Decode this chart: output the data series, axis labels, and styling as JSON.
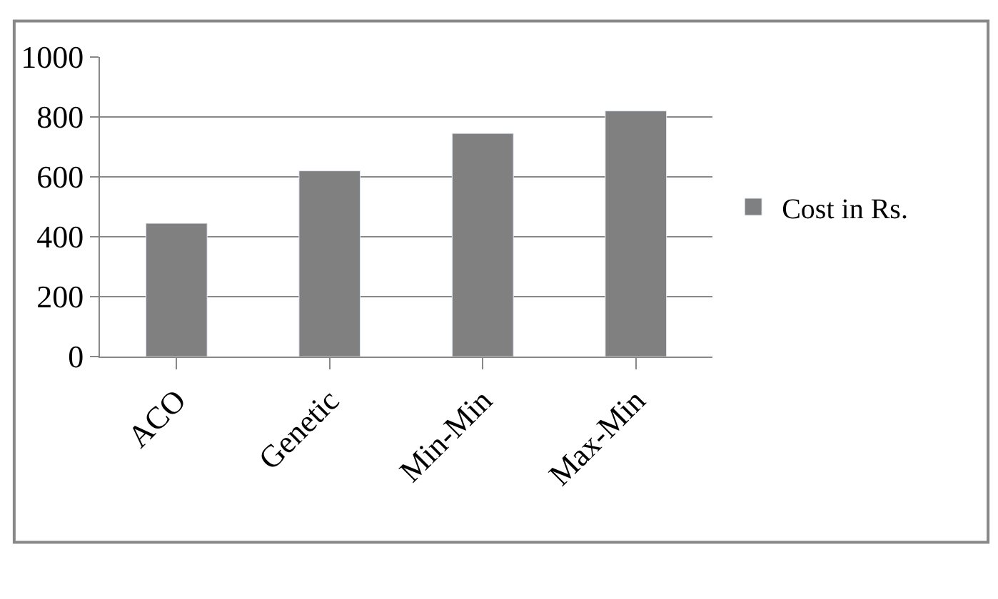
{
  "chart_data": {
    "type": "bar",
    "categories": [
      "ACO",
      "Genetic",
      "Min-Min",
      "Max-Min"
    ],
    "series": [
      {
        "name": "Cost in Rs.",
        "color": "#808080",
        "values": [
          445,
          620,
          745,
          820
        ]
      }
    ],
    "ylim": [
      0,
      1000
    ],
    "yticks": [
      0,
      200,
      400,
      600,
      800,
      1000
    ],
    "grid": "y",
    "legend": "right"
  }
}
